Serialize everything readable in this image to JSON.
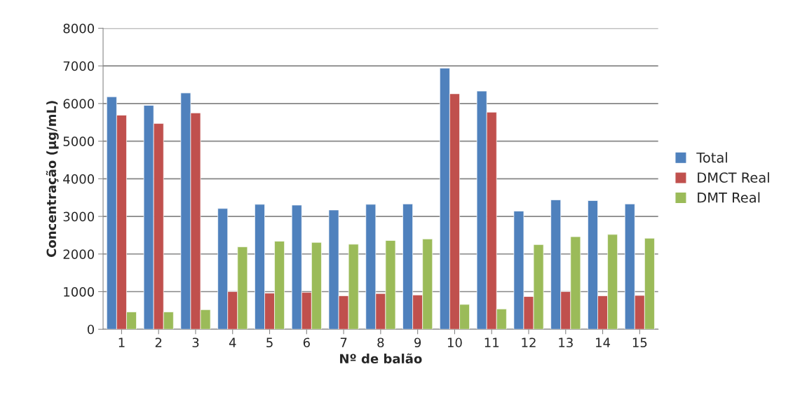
{
  "chart_data": {
    "type": "bar",
    "xlabel": "Nº de balão",
    "ylabel": "Concentração (µg/mL)",
    "categories": [
      "1",
      "2",
      "3",
      "4",
      "5",
      "6",
      "7",
      "8",
      "9",
      "10",
      "11",
      "12",
      "13",
      "14",
      "15"
    ],
    "series": [
      {
        "name": "Total",
        "color": "#4f81bd",
        "values": [
          6180,
          5950,
          6280,
          3210,
          3320,
          3300,
          3170,
          3320,
          3330,
          6940,
          6330,
          3140,
          3440,
          3420,
          3330
        ]
      },
      {
        "name": "DMCT Real",
        "color": "#c0504d",
        "values": [
          5690,
          5470,
          5750,
          1000,
          960,
          980,
          890,
          950,
          910,
          6260,
          5770,
          870,
          1000,
          890,
          900
        ]
      },
      {
        "name": "DMT Real",
        "color": "#9bbb59",
        "values": [
          460,
          460,
          520,
          2190,
          2340,
          2310,
          2260,
          2360,
          2400,
          660,
          540,
          2250,
          2460,
          2520,
          2420
        ]
      }
    ],
    "ylim": [
      0,
      8000
    ],
    "yticks": [
      0,
      1000,
      2000,
      3000,
      4000,
      5000,
      6000,
      7000,
      8000
    ],
    "grid": "y",
    "legend": "right"
  }
}
